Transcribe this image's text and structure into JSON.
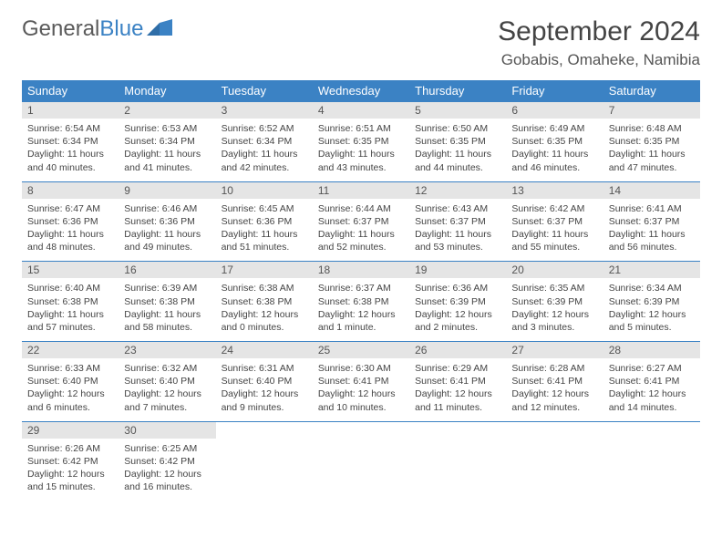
{
  "brand": {
    "part1": "General",
    "part2": "Blue"
  },
  "title": "September 2024",
  "location": "Gobabis, Omaheke, Namibia",
  "colors": {
    "header_bg": "#3b82c4",
    "header_text": "#ffffff",
    "daynum_bg": "#e5e5e5",
    "text": "#444444",
    "row_divider": "#3b82c4"
  },
  "typography": {
    "title_fontsize": 30,
    "location_fontsize": 17,
    "dayheader_fontsize": 13,
    "daynum_fontsize": 12,
    "details_fontsize": 10.5
  },
  "day_headers": [
    "Sunday",
    "Monday",
    "Tuesday",
    "Wednesday",
    "Thursday",
    "Friday",
    "Saturday"
  ],
  "weeks": [
    [
      {
        "n": "1",
        "sr": "Sunrise: 6:54 AM",
        "ss": "Sunset: 6:34 PM",
        "dl": "Daylight: 11 hours and 40 minutes."
      },
      {
        "n": "2",
        "sr": "Sunrise: 6:53 AM",
        "ss": "Sunset: 6:34 PM",
        "dl": "Daylight: 11 hours and 41 minutes."
      },
      {
        "n": "3",
        "sr": "Sunrise: 6:52 AM",
        "ss": "Sunset: 6:34 PM",
        "dl": "Daylight: 11 hours and 42 minutes."
      },
      {
        "n": "4",
        "sr": "Sunrise: 6:51 AM",
        "ss": "Sunset: 6:35 PM",
        "dl": "Daylight: 11 hours and 43 minutes."
      },
      {
        "n": "5",
        "sr": "Sunrise: 6:50 AM",
        "ss": "Sunset: 6:35 PM",
        "dl": "Daylight: 11 hours and 44 minutes."
      },
      {
        "n": "6",
        "sr": "Sunrise: 6:49 AM",
        "ss": "Sunset: 6:35 PM",
        "dl": "Daylight: 11 hours and 46 minutes."
      },
      {
        "n": "7",
        "sr": "Sunrise: 6:48 AM",
        "ss": "Sunset: 6:35 PM",
        "dl": "Daylight: 11 hours and 47 minutes."
      }
    ],
    [
      {
        "n": "8",
        "sr": "Sunrise: 6:47 AM",
        "ss": "Sunset: 6:36 PM",
        "dl": "Daylight: 11 hours and 48 minutes."
      },
      {
        "n": "9",
        "sr": "Sunrise: 6:46 AM",
        "ss": "Sunset: 6:36 PM",
        "dl": "Daylight: 11 hours and 49 minutes."
      },
      {
        "n": "10",
        "sr": "Sunrise: 6:45 AM",
        "ss": "Sunset: 6:36 PM",
        "dl": "Daylight: 11 hours and 51 minutes."
      },
      {
        "n": "11",
        "sr": "Sunrise: 6:44 AM",
        "ss": "Sunset: 6:37 PM",
        "dl": "Daylight: 11 hours and 52 minutes."
      },
      {
        "n": "12",
        "sr": "Sunrise: 6:43 AM",
        "ss": "Sunset: 6:37 PM",
        "dl": "Daylight: 11 hours and 53 minutes."
      },
      {
        "n": "13",
        "sr": "Sunrise: 6:42 AM",
        "ss": "Sunset: 6:37 PM",
        "dl": "Daylight: 11 hours and 55 minutes."
      },
      {
        "n": "14",
        "sr": "Sunrise: 6:41 AM",
        "ss": "Sunset: 6:37 PM",
        "dl": "Daylight: 11 hours and 56 minutes."
      }
    ],
    [
      {
        "n": "15",
        "sr": "Sunrise: 6:40 AM",
        "ss": "Sunset: 6:38 PM",
        "dl": "Daylight: 11 hours and 57 minutes."
      },
      {
        "n": "16",
        "sr": "Sunrise: 6:39 AM",
        "ss": "Sunset: 6:38 PM",
        "dl": "Daylight: 11 hours and 58 minutes."
      },
      {
        "n": "17",
        "sr": "Sunrise: 6:38 AM",
        "ss": "Sunset: 6:38 PM",
        "dl": "Daylight: 12 hours and 0 minutes."
      },
      {
        "n": "18",
        "sr": "Sunrise: 6:37 AM",
        "ss": "Sunset: 6:38 PM",
        "dl": "Daylight: 12 hours and 1 minute."
      },
      {
        "n": "19",
        "sr": "Sunrise: 6:36 AM",
        "ss": "Sunset: 6:39 PM",
        "dl": "Daylight: 12 hours and 2 minutes."
      },
      {
        "n": "20",
        "sr": "Sunrise: 6:35 AM",
        "ss": "Sunset: 6:39 PM",
        "dl": "Daylight: 12 hours and 3 minutes."
      },
      {
        "n": "21",
        "sr": "Sunrise: 6:34 AM",
        "ss": "Sunset: 6:39 PM",
        "dl": "Daylight: 12 hours and 5 minutes."
      }
    ],
    [
      {
        "n": "22",
        "sr": "Sunrise: 6:33 AM",
        "ss": "Sunset: 6:40 PM",
        "dl": "Daylight: 12 hours and 6 minutes."
      },
      {
        "n": "23",
        "sr": "Sunrise: 6:32 AM",
        "ss": "Sunset: 6:40 PM",
        "dl": "Daylight: 12 hours and 7 minutes."
      },
      {
        "n": "24",
        "sr": "Sunrise: 6:31 AM",
        "ss": "Sunset: 6:40 PM",
        "dl": "Daylight: 12 hours and 9 minutes."
      },
      {
        "n": "25",
        "sr": "Sunrise: 6:30 AM",
        "ss": "Sunset: 6:41 PM",
        "dl": "Daylight: 12 hours and 10 minutes."
      },
      {
        "n": "26",
        "sr": "Sunrise: 6:29 AM",
        "ss": "Sunset: 6:41 PM",
        "dl": "Daylight: 12 hours and 11 minutes."
      },
      {
        "n": "27",
        "sr": "Sunrise: 6:28 AM",
        "ss": "Sunset: 6:41 PM",
        "dl": "Daylight: 12 hours and 12 minutes."
      },
      {
        "n": "28",
        "sr": "Sunrise: 6:27 AM",
        "ss": "Sunset: 6:41 PM",
        "dl": "Daylight: 12 hours and 14 minutes."
      }
    ],
    [
      {
        "n": "29",
        "sr": "Sunrise: 6:26 AM",
        "ss": "Sunset: 6:42 PM",
        "dl": "Daylight: 12 hours and 15 minutes."
      },
      {
        "n": "30",
        "sr": "Sunrise: 6:25 AM",
        "ss": "Sunset: 6:42 PM",
        "dl": "Daylight: 12 hours and 16 minutes."
      },
      {
        "n": "",
        "sr": "",
        "ss": "",
        "dl": "",
        "empty": true
      },
      {
        "n": "",
        "sr": "",
        "ss": "",
        "dl": "",
        "empty": true
      },
      {
        "n": "",
        "sr": "",
        "ss": "",
        "dl": "",
        "empty": true
      },
      {
        "n": "",
        "sr": "",
        "ss": "",
        "dl": "",
        "empty": true
      },
      {
        "n": "",
        "sr": "",
        "ss": "",
        "dl": "",
        "empty": true
      }
    ]
  ]
}
